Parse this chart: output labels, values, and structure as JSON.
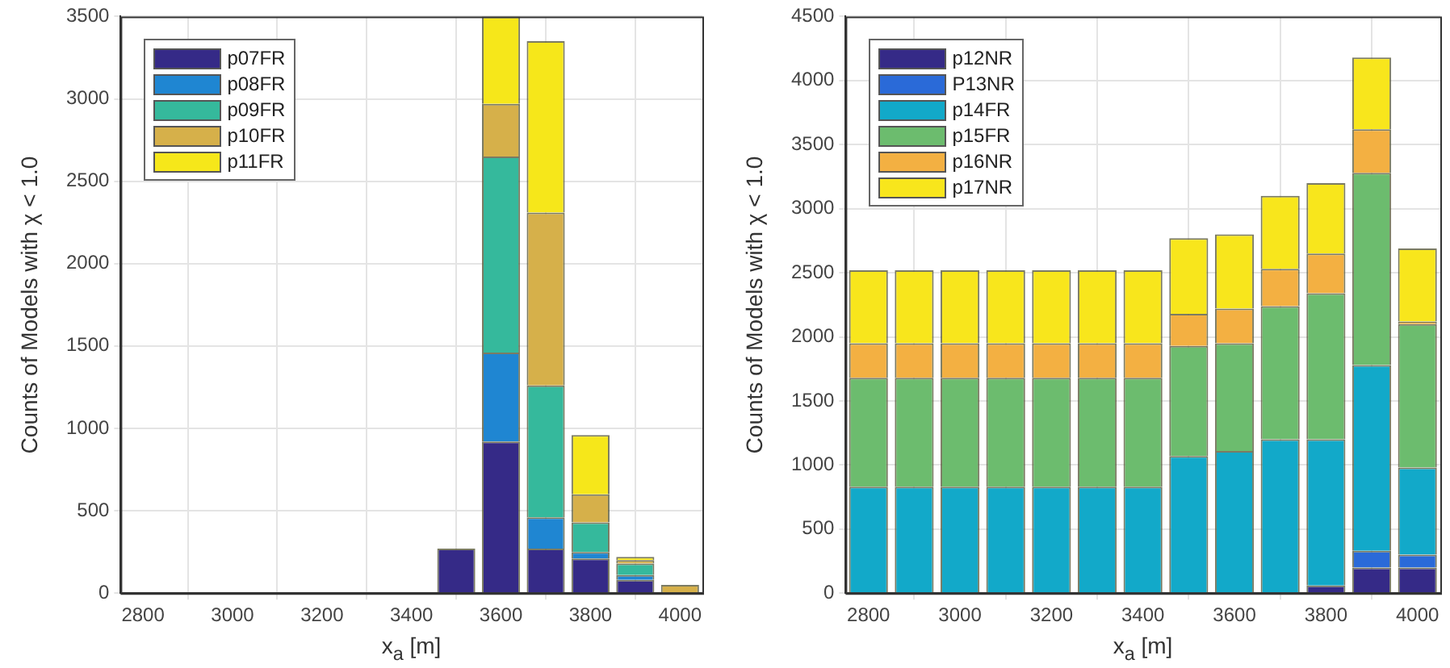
{
  "chart_data": [
    {
      "type": "bar",
      "stacked": true,
      "xlabel": "x$_{a}$ [m]",
      "ylabel": "Counts of Models with χ < 1.0",
      "x": [
        2800,
        2900,
        3000,
        3100,
        3200,
        3300,
        3400,
        3500,
        3600,
        3700,
        3800,
        3900,
        4000
      ],
      "xlim": [
        2750,
        4050
      ],
      "xticks": [
        2800,
        3000,
        3200,
        3400,
        3600,
        3800,
        4000
      ],
      "ylim": [
        0,
        3500
      ],
      "yticks": [
        0,
        500,
        1000,
        1500,
        2000,
        2500,
        3000,
        3500
      ],
      "grid": true,
      "legend": "top left",
      "series": [
        {
          "name": "p07FR",
          "color": "#352a87",
          "values": [
            0,
            0,
            0,
            0,
            0,
            0,
            0,
            270,
            920,
            270,
            210,
            80,
            0
          ]
        },
        {
          "name": "p08FR",
          "color": "#1f86d2",
          "values": [
            0,
            0,
            0,
            0,
            0,
            0,
            0,
            0,
            540,
            190,
            40,
            30,
            0
          ]
        },
        {
          "name": "p09FR",
          "color": "#35b99c",
          "values": [
            0,
            0,
            0,
            0,
            0,
            0,
            0,
            0,
            1190,
            800,
            180,
            70,
            0
          ]
        },
        {
          "name": "p10FR",
          "color": "#d6b04a",
          "values": [
            0,
            0,
            0,
            0,
            0,
            0,
            0,
            0,
            320,
            1050,
            170,
            20,
            50
          ]
        },
        {
          "name": "p11FR",
          "color": "#f6e71a",
          "values": [
            0,
            0,
            0,
            0,
            0,
            0,
            0,
            0,
            530,
            1040,
            360,
            20,
            0
          ]
        }
      ]
    },
    {
      "type": "bar",
      "stacked": true,
      "xlabel": "x$_{a}$ [m]",
      "ylabel": "Counts of Models with χ < 1.0",
      "x": [
        2800,
        2900,
        3000,
        3100,
        3200,
        3300,
        3400,
        3500,
        3600,
        3700,
        3800,
        3900,
        4000
      ],
      "xlim": [
        2750,
        4050
      ],
      "xticks": [
        2800,
        3000,
        3200,
        3400,
        3600,
        3800,
        4000
      ],
      "ylim": [
        0,
        4500
      ],
      "yticks": [
        0,
        500,
        1000,
        1500,
        2000,
        2500,
        3000,
        3500,
        4000,
        4500
      ],
      "grid": true,
      "legend": "top left",
      "series": [
        {
          "name": "p12NR",
          "color": "#352a87",
          "values": [
            0,
            0,
            0,
            0,
            0,
            0,
            0,
            0,
            0,
            0,
            60,
            200,
            200
          ]
        },
        {
          "name": "P13NR",
          "color": "#2a6ad8",
          "values": [
            0,
            0,
            0,
            0,
            0,
            0,
            0,
            0,
            0,
            0,
            0,
            130,
            100
          ]
        },
        {
          "name": "p14FR",
          "color": "#12a9c9",
          "values": [
            830,
            830,
            830,
            830,
            830,
            830,
            830,
            1070,
            1110,
            1200,
            1140,
            1450,
            680
          ]
        },
        {
          "name": "p15FR",
          "color": "#6cbc6e",
          "values": [
            850,
            850,
            850,
            850,
            850,
            850,
            850,
            860,
            840,
            1040,
            1140,
            1500,
            1120
          ]
        },
        {
          "name": "p16NR",
          "color": "#f3b042",
          "values": [
            270,
            270,
            270,
            270,
            270,
            270,
            270,
            250,
            270,
            290,
            310,
            340,
            20
          ]
        },
        {
          "name": "p17NR",
          "color": "#f8e61c",
          "values": [
            570,
            570,
            570,
            570,
            570,
            570,
            570,
            590,
            580,
            570,
            550,
            560,
            570
          ]
        }
      ]
    }
  ]
}
